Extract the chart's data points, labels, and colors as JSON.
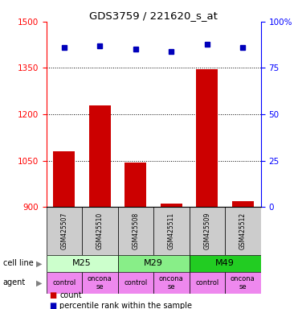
{
  "title": "GDS3759 / 221620_s_at",
  "samples": [
    "GSM425507",
    "GSM425510",
    "GSM425508",
    "GSM425511",
    "GSM425509",
    "GSM425512"
  ],
  "counts": [
    1080,
    1230,
    1045,
    910,
    1345,
    920
  ],
  "percentile_ranks": [
    86,
    87,
    85,
    84,
    88,
    86
  ],
  "ylim_left": [
    900,
    1500
  ],
  "ylim_right": [
    0,
    100
  ],
  "yticks_left": [
    900,
    1050,
    1200,
    1350,
    1500
  ],
  "yticks_right": [
    0,
    25,
    50,
    75,
    100
  ],
  "ytick_right_labels": [
    "0",
    "25",
    "50",
    "75",
    "100%"
  ],
  "bar_color": "#cc0000",
  "dot_color": "#0000bb",
  "cell_lines": [
    {
      "label": "M25",
      "span": [
        0,
        2
      ],
      "color": "#ccffcc"
    },
    {
      "label": "M29",
      "span": [
        2,
        4
      ],
      "color": "#88ee88"
    },
    {
      "label": "M49",
      "span": [
        4,
        6
      ],
      "color": "#22cc22"
    }
  ],
  "agents": [
    {
      "label": "control",
      "span": [
        0,
        1
      ],
      "color": "#ee88ee"
    },
    {
      "label": "oncona\nse",
      "span": [
        1,
        2
      ],
      "color": "#ee88ee"
    },
    {
      "label": "control",
      "span": [
        2,
        3
      ],
      "color": "#ee88ee"
    },
    {
      "label": "oncona\nse",
      "span": [
        3,
        4
      ],
      "color": "#ee88ee"
    },
    {
      "label": "control",
      "span": [
        4,
        5
      ],
      "color": "#ee88ee"
    },
    {
      "label": "oncona\nse",
      "span": [
        5,
        6
      ],
      "color": "#ee88ee"
    }
  ],
  "sample_bg_color": "#cccccc",
  "cell_line_label": "cell line",
  "agent_label": "agent",
  "legend_count_label": "count",
  "legend_pct_label": "percentile rank within the sample",
  "legend_count_color": "#cc0000",
  "legend_dot_color": "#0000bb"
}
